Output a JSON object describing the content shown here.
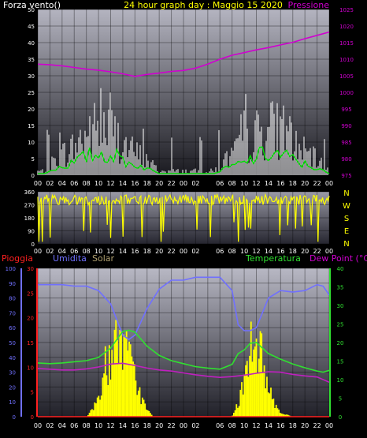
{
  "colors": {
    "background": "#000000",
    "wind_max": "#ffffff",
    "wind_avg": "#00e000",
    "pressure": "#d000d0",
    "direction": "#ffff00",
    "rain": "#ff2020",
    "humidity": "#7070ff",
    "solar": "#ffff00",
    "temperature": "#30e030",
    "dew_point": "#c020c0",
    "title": "#ffff00",
    "text": "#ffffff"
  },
  "chart_data": [
    {
      "id": "wind_pressure",
      "type": "line",
      "title": "24 hour graph day : Maggio 15 2020",
      "left_label": "Forza vento()",
      "right_label": "Pressione",
      "y_left": {
        "range": [
          0,
          50
        ],
        "ticks": [
          0,
          5,
          10,
          15,
          20,
          25,
          30,
          35,
          40,
          45,
          50
        ]
      },
      "y_right": {
        "range": [
          975,
          1025
        ],
        "ticks": [
          975,
          980,
          985,
          990,
          995,
          1000,
          1005,
          1010,
          1015,
          1020,
          1025
        ]
      },
      "x_ticks": [
        "00",
        "02",
        "04",
        "06",
        "08",
        "10",
        "12",
        "14",
        "16",
        "18",
        "20",
        "22",
        "00",
        "02",
        "",
        "06",
        "08",
        "10",
        "12",
        "14",
        "16",
        "18",
        "20",
        "22",
        "00"
      ],
      "series": [
        {
          "name": "",
          "color_key": "pressure",
          "axis": "right",
          "x": [
            0,
            2,
            4,
            6,
            8,
            10,
            12,
            14,
            16,
            18,
            20,
            22,
            24,
            26,
            28,
            30,
            32,
            34,
            36,
            38,
            40,
            42,
            44,
            46,
            48
          ],
          "values": [
            1008.5,
            1008.3,
            1008,
            1007.5,
            1007,
            1006.7,
            1006.2,
            1005.6,
            1004.8,
            1005.4,
            1005.8,
            1006.3,
            1006.6,
            1007.3,
            1008.5,
            1010,
            1011.2,
            1012,
            1012.8,
            1013.5,
            1014.3,
            1015.1,
            1016.2,
            1017.2,
            1018.2
          ]
        }
      ]
    },
    {
      "id": "wind_direction",
      "type": "line",
      "y_left": {
        "range": [
          0,
          360
        ],
        "ticks": [
          0,
          90,
          180,
          270,
          360
        ]
      },
      "compass": [
        "N",
        "W",
        "S",
        "E",
        "N"
      ],
      "x_ticks": [
        "00",
        "02",
        "04",
        "06",
        "08",
        "10",
        "12",
        "14",
        "16",
        "18",
        "20",
        "22",
        "00",
        "02",
        "",
        "06",
        "08",
        "10",
        "12",
        "14",
        "16",
        "18",
        "20",
        "22",
        "00"
      ]
    },
    {
      "id": "rain_humidity_solar_temp",
      "type": "line",
      "labels": {
        "rain": "Pioggia",
        "humidity": "Umidita",
        "solar": "Solar",
        "temperature": "Temperatura",
        "dew_point": "Dew Point (°C)"
      },
      "y_humidity": {
        "range": [
          0,
          100
        ],
        "ticks": [
          0,
          10,
          20,
          30,
          40,
          50,
          60,
          70,
          80,
          90,
          100
        ]
      },
      "y_rain": {
        "range": [
          0,
          30
        ],
        "ticks": [
          0,
          5,
          10,
          15,
          20,
          25,
          30
        ]
      },
      "y_temp": {
        "range": [
          0,
          40
        ],
        "ticks": [
          0,
          5,
          10,
          15,
          20,
          25,
          30,
          35,
          40
        ]
      },
      "x_ticks": [
        "00",
        "02",
        "04",
        "06",
        "08",
        "10",
        "12",
        "14",
        "16",
        "18",
        "20",
        "22",
        "00",
        "02",
        "",
        "06",
        "08",
        "10",
        "12",
        "14",
        "16",
        "18",
        "20",
        "22",
        "00"
      ],
      "series": [
        {
          "name": "Umidita",
          "color_key": "humidity",
          "axis": "humidity",
          "x": [
            0,
            2,
            4,
            6,
            8,
            10,
            12,
            14,
            15,
            16,
            18,
            20,
            22,
            24,
            26,
            28,
            30,
            32,
            33,
            34,
            35,
            36,
            38,
            40,
            42,
            44,
            46,
            47,
            48
          ],
          "values": [
            89,
            89,
            89,
            88,
            88,
            85,
            76,
            55,
            52,
            55,
            73,
            86,
            92,
            92,
            94,
            94,
            94,
            85,
            62,
            58,
            58,
            60,
            80,
            85,
            84,
            85,
            89,
            88,
            82
          ]
        },
        {
          "name": "Temperatura",
          "color_key": "temperature",
          "axis": "temp",
          "x": [
            0,
            2,
            4,
            6,
            8,
            10,
            12,
            14,
            15,
            16,
            18,
            20,
            22,
            24,
            26,
            28,
            30,
            32,
            33,
            34,
            35,
            36,
            38,
            40,
            42,
            44,
            46,
            47,
            48
          ],
          "values": [
            14.5,
            14.3,
            14.5,
            14.8,
            15.1,
            16,
            18.5,
            23,
            23.3,
            22.8,
            19,
            16.5,
            15.1,
            14.3,
            13.5,
            13.1,
            12.8,
            14.1,
            17,
            18,
            19.8,
            20,
            17,
            15.5,
            14.2,
            13.2,
            12.3,
            12,
            12.5
          ]
        },
        {
          "name": "Dew Point (°C)",
          "color_key": "dew_point",
          "axis": "temp",
          "x": [
            0,
            2,
            4,
            6,
            8,
            10,
            12,
            14,
            16,
            18,
            20,
            22,
            24,
            26,
            28,
            30,
            32,
            34,
            36,
            38,
            40,
            42,
            44,
            46,
            48
          ],
          "values": [
            13,
            12.8,
            12.6,
            12.6,
            12.9,
            13.4,
            14.2,
            14.4,
            13.8,
            13.1,
            12.6,
            12.3,
            11.8,
            11.3,
            10.9,
            10.6,
            10.8,
            11.2,
            11.7,
            12.1,
            12,
            11.4,
            11,
            10.7,
            9.3
          ]
        },
        {
          "name": "Solar",
          "color_key": "solar",
          "axis": "temp",
          "x": [
            0,
            8,
            9,
            10,
            11,
            12,
            13,
            14,
            15,
            16,
            17,
            18,
            19,
            20,
            32,
            33,
            34,
            35,
            36,
            37,
            38,
            39,
            40,
            42,
            48
          ],
          "values": [
            0,
            0,
            2,
            6,
            12,
            18,
            22,
            22,
            18,
            12,
            6,
            2,
            0,
            0,
            0,
            4,
            10,
            16,
            20,
            18,
            10,
            4,
            1,
            0,
            0
          ]
        },
        {
          "name": "Pioggia",
          "color_key": "rain",
          "axis": "rain",
          "x": [
            0,
            48
          ],
          "values": [
            0,
            0
          ]
        }
      ]
    }
  ]
}
